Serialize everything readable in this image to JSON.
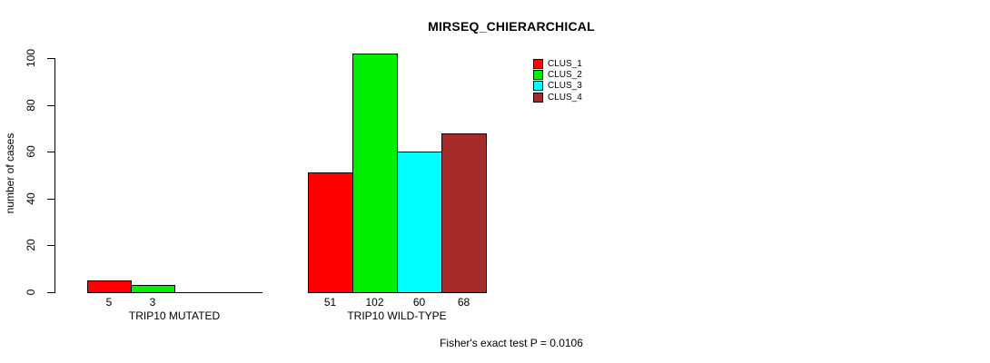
{
  "chart_data": {
    "type": "bar",
    "title": "MIRSEQ_CHIERARCHICAL",
    "ylabel": "number of cases",
    "xlabel": "",
    "ylim": [
      0,
      100
    ],
    "yticks": [
      0,
      20,
      40,
      60,
      80,
      100
    ],
    "grid": false,
    "legend_position": "top-right",
    "bar_border_color": "#000000",
    "series": [
      {
        "name": "CLUS_1",
        "color": "#FF0000"
      },
      {
        "name": "CLUS_2",
        "color": "#00EE00"
      },
      {
        "name": "CLUS_3",
        "color": "#00FFFF"
      },
      {
        "name": "CLUS_4",
        "color": "#A52A2A"
      }
    ],
    "groups": [
      {
        "label": "TRIP10 MUTATED",
        "values": [
          5,
          3,
          0,
          0
        ],
        "value_labels": [
          "5",
          "3",
          "",
          ""
        ]
      },
      {
        "label": "TRIP10 WILD-TYPE",
        "values": [
          51,
          102,
          60,
          68
        ],
        "value_labels": [
          "51",
          "102",
          "60",
          "68"
        ]
      }
    ],
    "annotation": "Fisher's exact test P = 0.0106"
  }
}
